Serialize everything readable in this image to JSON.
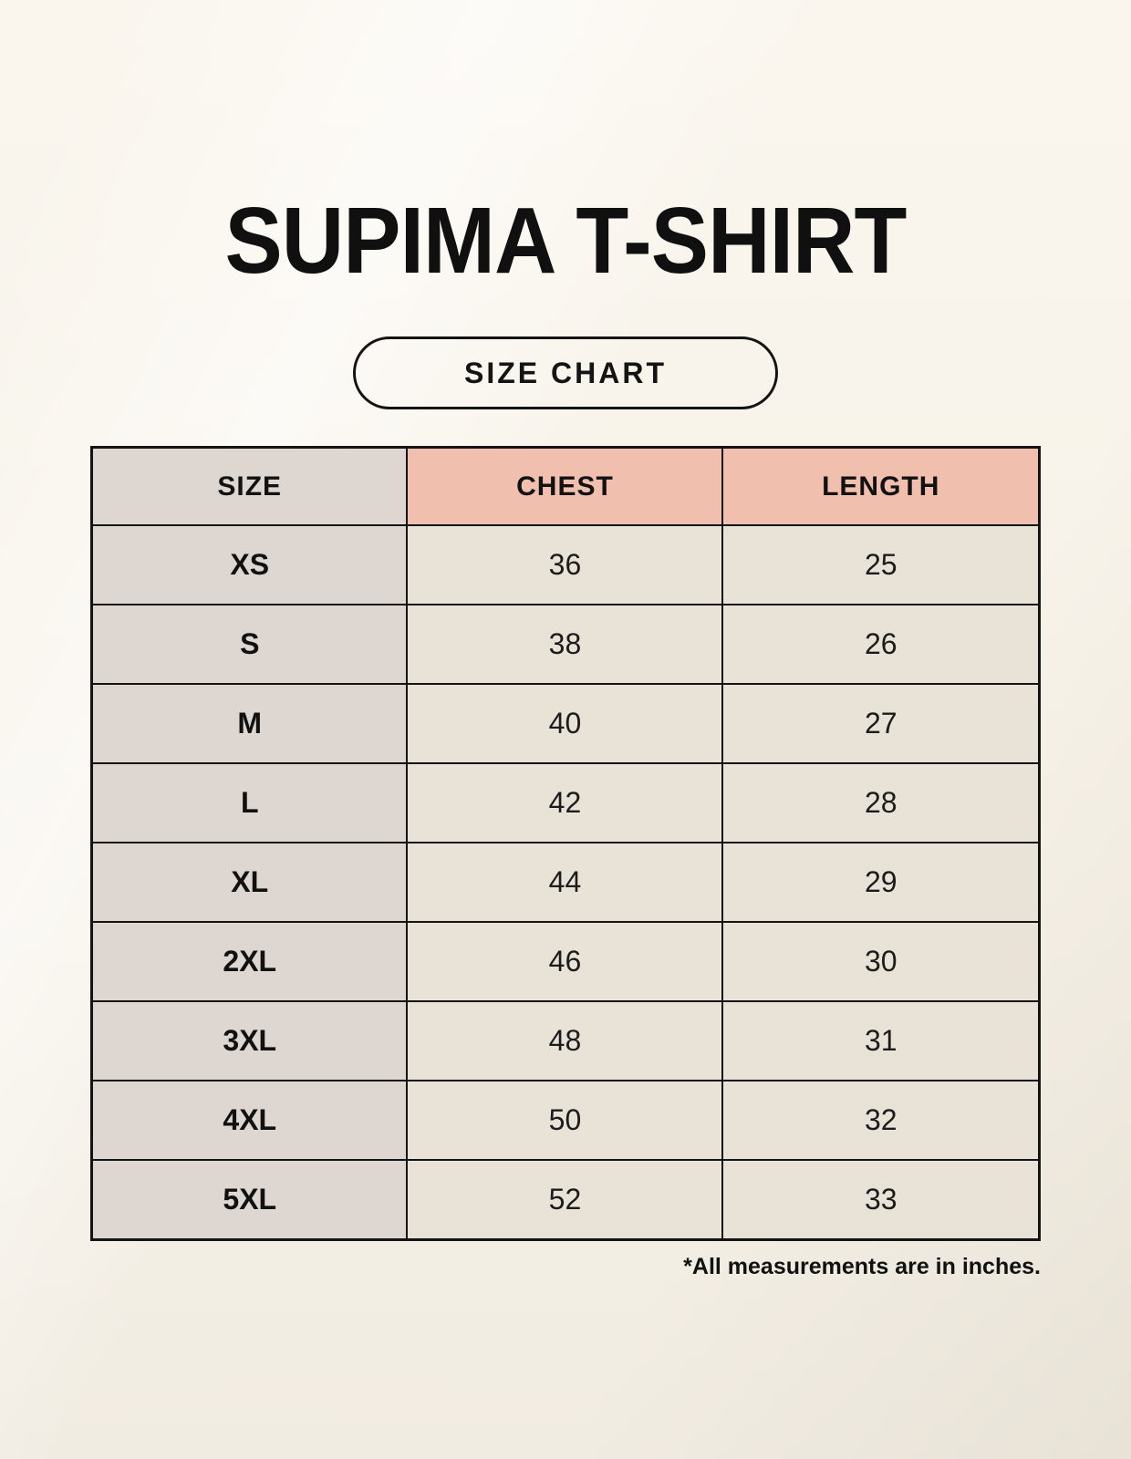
{
  "page": {
    "title": "SUPIMA T-SHIRT",
    "badge_label": "SIZE CHART",
    "footnote": "*All measurements are in inches."
  },
  "colors": {
    "background": "#f6f1e7",
    "size_column_bg": "#ded6d0",
    "header_accent_bg": "#f0bfad",
    "value_cell_bg": "#e9e2d6",
    "border": "#141414",
    "text": "#121212"
  },
  "chart_data": {
    "type": "table",
    "title": "SUPIMA T-SHIRT",
    "columns": [
      "SIZE",
      "CHEST",
      "LENGTH"
    ],
    "rows": [
      [
        "XS",
        "36",
        "25"
      ],
      [
        "S",
        "38",
        "26"
      ],
      [
        "M",
        "40",
        "27"
      ],
      [
        "L",
        "42",
        "28"
      ],
      [
        "XL",
        "44",
        "29"
      ],
      [
        "2XL",
        "46",
        "30"
      ],
      [
        "3XL",
        "48",
        "31"
      ],
      [
        "4XL",
        "50",
        "32"
      ],
      [
        "5XL",
        "52",
        "33"
      ]
    ],
    "units": "inches",
    "layout": {
      "grid": true,
      "header_row": true,
      "highlighted_columns": [
        "CHEST",
        "LENGTH"
      ]
    }
  }
}
